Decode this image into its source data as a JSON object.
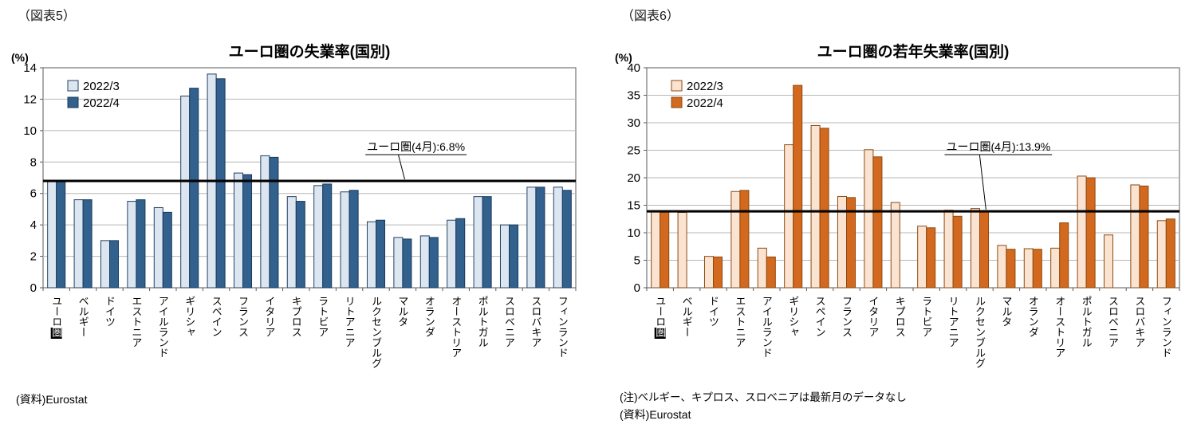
{
  "figures": [
    {
      "figure_label": "（図表5）",
      "source": "(資料)Eurostat"
    },
    {
      "figure_label": "（図表6）",
      "note": "(注)ベルギー、キプロス、スロベニアは最新月のデータなし",
      "source": "(資料)Eurostat"
    }
  ],
  "chart_data": [
    {
      "type": "bar",
      "title": "ユーロ圏の失業率(国別)",
      "ylabel": "(%)",
      "ylim": [
        0,
        14
      ],
      "ytick": 2,
      "grid": true,
      "legend_position": "top-left",
      "categories": [
        "ユーロ圏",
        "ベルギー",
        "ドイツ",
        "エストニア",
        "アイルランド",
        "ギリシャ",
        "スペイン",
        "フランス",
        "イタリア",
        "キプロス",
        "ラトビア",
        "リトアニア",
        "ルクセンブルグ",
        "マルタ",
        "オランダ",
        "オーストリア",
        "ポルトガル",
        "スロベニア",
        "スロバキア",
        "フィンランド"
      ],
      "series": [
        {
          "name": "2022/3",
          "values": [
            6.8,
            5.6,
            3.0,
            5.5,
            5.1,
            12.2,
            13.6,
            7.3,
            8.4,
            5.8,
            6.5,
            6.1,
            4.2,
            3.2,
            3.3,
            4.3,
            5.8,
            4.0,
            6.4,
            6.4
          ]
        },
        {
          "name": "2022/4",
          "values": [
            6.8,
            5.6,
            3.0,
            5.6,
            4.8,
            12.7,
            13.3,
            7.2,
            8.3,
            5.5,
            6.6,
            6.2,
            4.3,
            3.1,
            3.2,
            4.4,
            5.8,
            4.0,
            6.4,
            6.2
          ]
        }
      ],
      "ref_line": {
        "value": 6.8,
        "label": "ユーロ圏(4月):6.8%"
      },
      "category_highlight": {
        "category_index": 0,
        "char_index": 3
      },
      "colors": {
        "series1_fill": "#dce6f1",
        "series1_border": "#244061",
        "series2_fill": "#31618c",
        "series2_border": "#1c3a5e"
      }
    },
    {
      "type": "bar",
      "title": "ユーロ圏の若年失業率(国別)",
      "ylabel": "(%)",
      "ylim": [
        0,
        40
      ],
      "ytick": 5,
      "grid": true,
      "legend_position": "top-left",
      "categories": [
        "ユーロ圏",
        "ベルギー",
        "ドイツ",
        "エストニア",
        "アイルランド",
        "ギリシャ",
        "スペイン",
        "フランス",
        "イタリア",
        "キプロス",
        "ラトビア",
        "リトアニア",
        "ルクセンブルグ",
        "マルタ",
        "オランダ",
        "オーストリア",
        "ポルトガル",
        "スロベニア",
        "スロバキア",
        "フィンランド"
      ],
      "series": [
        {
          "name": "2022/3",
          "values": [
            14.0,
            13.7,
            5.7,
            17.5,
            7.2,
            26.0,
            29.5,
            16.6,
            25.1,
            15.5,
            11.2,
            14.1,
            14.4,
            7.7,
            7.1,
            7.2,
            20.3,
            9.6,
            18.7,
            12.2
          ]
        },
        {
          "name": "2022/4",
          "values": [
            13.9,
            null,
            5.6,
            17.7,
            5.6,
            36.8,
            29.0,
            16.4,
            23.8,
            null,
            10.9,
            13.0,
            14.0,
            7.0,
            7.0,
            11.8,
            20.0,
            null,
            18.5,
            12.5
          ]
        }
      ],
      "ref_line": {
        "value": 13.9,
        "label": "ユーロ圏(4月):13.9%"
      },
      "category_highlight": {
        "category_index": 0,
        "char_index": 3
      },
      "colors": {
        "series1_fill": "#fbe3d1",
        "series1_border": "#8c4a10",
        "series2_fill": "#d2691e",
        "series2_border": "#8c4a10"
      }
    }
  ]
}
